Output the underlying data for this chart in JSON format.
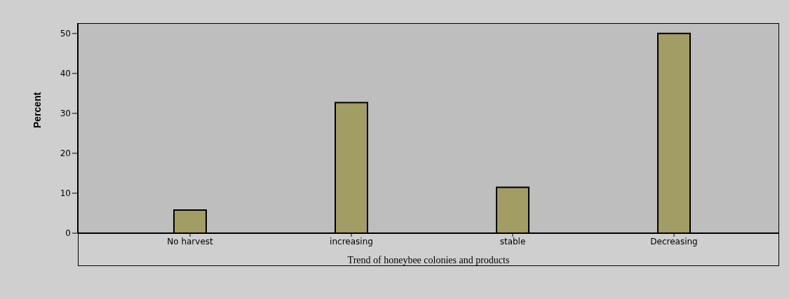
{
  "chart_data": {
    "type": "bar",
    "xlabel": "Trend of honeybee colonies and products",
    "ylabel": "Percent",
    "categories": [
      "No harvest",
      "increasing",
      "stable",
      "Decreasing"
    ],
    "values": [
      5.8,
      32.7,
      11.5,
      50.0
    ],
    "color": "#a29c65",
    "ylim": [
      0,
      52.6
    ],
    "yticks": [
      0,
      10,
      20,
      30,
      40,
      50
    ],
    "grid": false
  }
}
